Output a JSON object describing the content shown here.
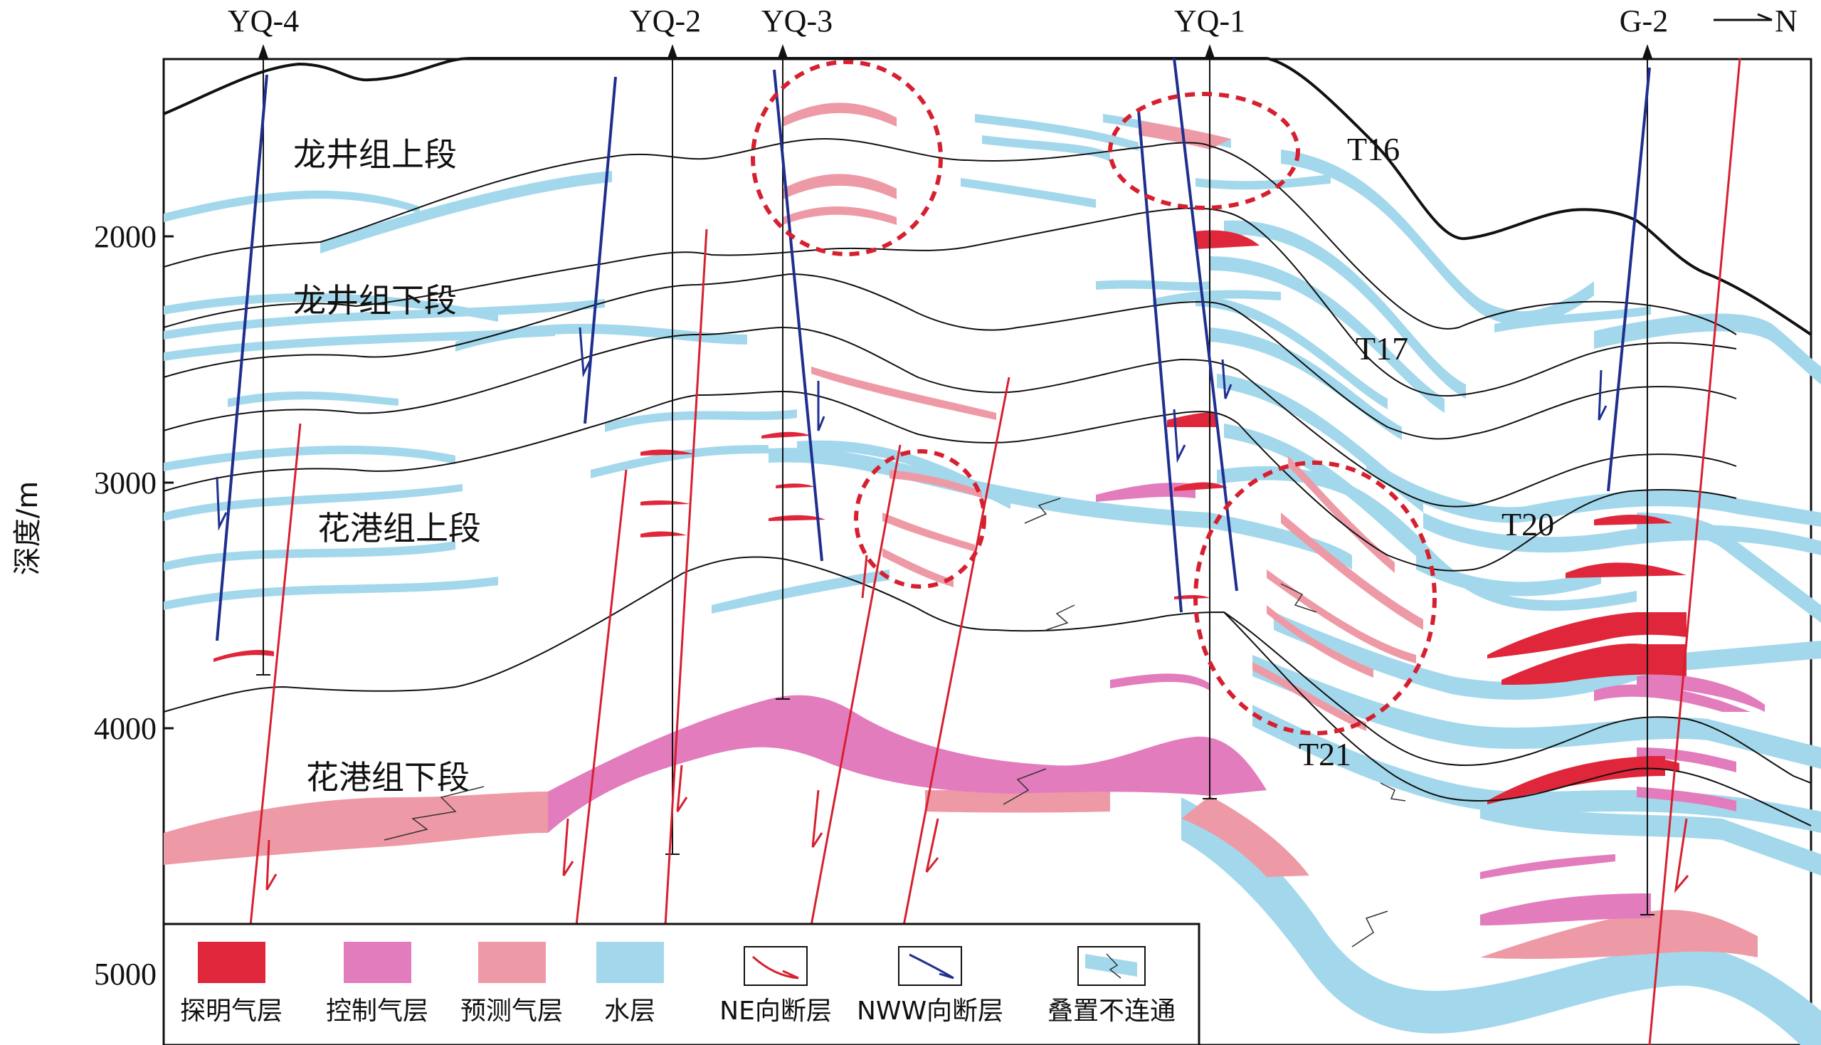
{
  "axis": {
    "title": "深度/m",
    "ticks": [
      "2000",
      "3000",
      "4000",
      "5000"
    ]
  },
  "wells": [
    "YQ-4",
    "YQ-2",
    "YQ-3",
    "YQ-1",
    "G-2"
  ],
  "north_label": "N",
  "units": {
    "longjing_upper": "龙井组上段",
    "longjing_lower": "龙井组下段",
    "huagang_upper": "花港组上段",
    "huagang_lower": "花港组下段"
  },
  "horizons": [
    "T16",
    "T17",
    "T20",
    "T21"
  ],
  "legend": {
    "proven_gas": "探明气层",
    "controlled_gas": "控制气层",
    "predicted_gas": "预测气层",
    "water": "水层",
    "ne_fault": "NE向断层",
    "nww_fault": "NWW向断层",
    "stacked_disconnected": "叠置不连通"
  },
  "colors": {
    "proven_gas": "#e0263a",
    "controlled_gas": "#e37cbd",
    "predicted_gas": "#ee9aa6",
    "water": "#a3d8ec",
    "ne_fault": "#d62030",
    "nww_fault": "#1f2f8f",
    "boundary": "#111111",
    "highlight": "#d62030"
  }
}
